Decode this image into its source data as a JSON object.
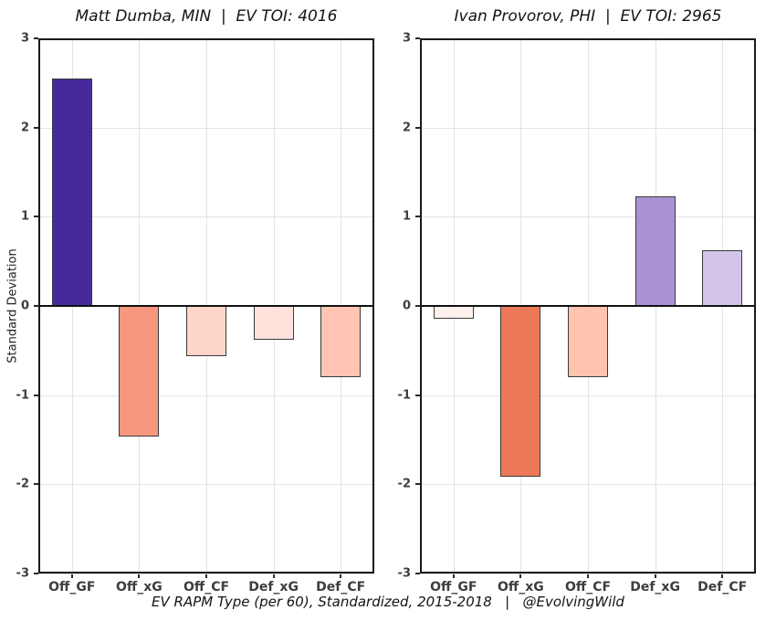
{
  "figure": {
    "ylabel": "Standard Deviation",
    "caption": "EV RAPM Type (per 60), Standardized, 2015-2018   |   @EvolvingWild",
    "colors": {
      "grid": "#e3e3e3",
      "axis_border": "#1a1a1a",
      "zero_line": "#111111",
      "bar_outline": "#3a3a3a",
      "tick_text": "#3d3d3d"
    }
  },
  "chart_data": [
    {
      "type": "bar",
      "title": "Matt Dumba, MIN  |  EV TOI: 4016",
      "xlabel": "",
      "ylabel": "Standard Deviation",
      "categories": [
        "Off_GF",
        "Off_xG",
        "Off_CF",
        "Def_xG",
        "Def_CF"
      ],
      "values": [
        2.55,
        -1.46,
        -0.56,
        -0.38,
        -0.8
      ],
      "bar_colors": [
        "#462A9B",
        "#F7977E",
        "#FDD5C9",
        "#FFE2DC",
        "#FFC5B2"
      ],
      "ylim": [
        -3,
        3
      ],
      "yticks": [
        3,
        2,
        1,
        0,
        -1,
        -2,
        -3
      ],
      "grid": true,
      "legend": false
    },
    {
      "type": "bar",
      "title": "Ivan Provorov, PHI  |  EV TOI: 2965",
      "xlabel": "",
      "ylabel": "Standard Deviation",
      "categories": [
        "Off_GF",
        "Off_xG",
        "Off_CF",
        "Def_xG",
        "Def_CF"
      ],
      "values": [
        -0.14,
        -1.91,
        -0.8,
        1.23,
        0.62
      ],
      "bar_colors": [
        "#FEF0EC",
        "#EC7859",
        "#FFC4B0",
        "#A991D4",
        "#D3C5E8"
      ],
      "ylim": [
        -3,
        3
      ],
      "yticks": [
        3,
        2,
        1,
        0,
        -1,
        -2,
        -3
      ],
      "grid": true,
      "legend": false
    }
  ]
}
